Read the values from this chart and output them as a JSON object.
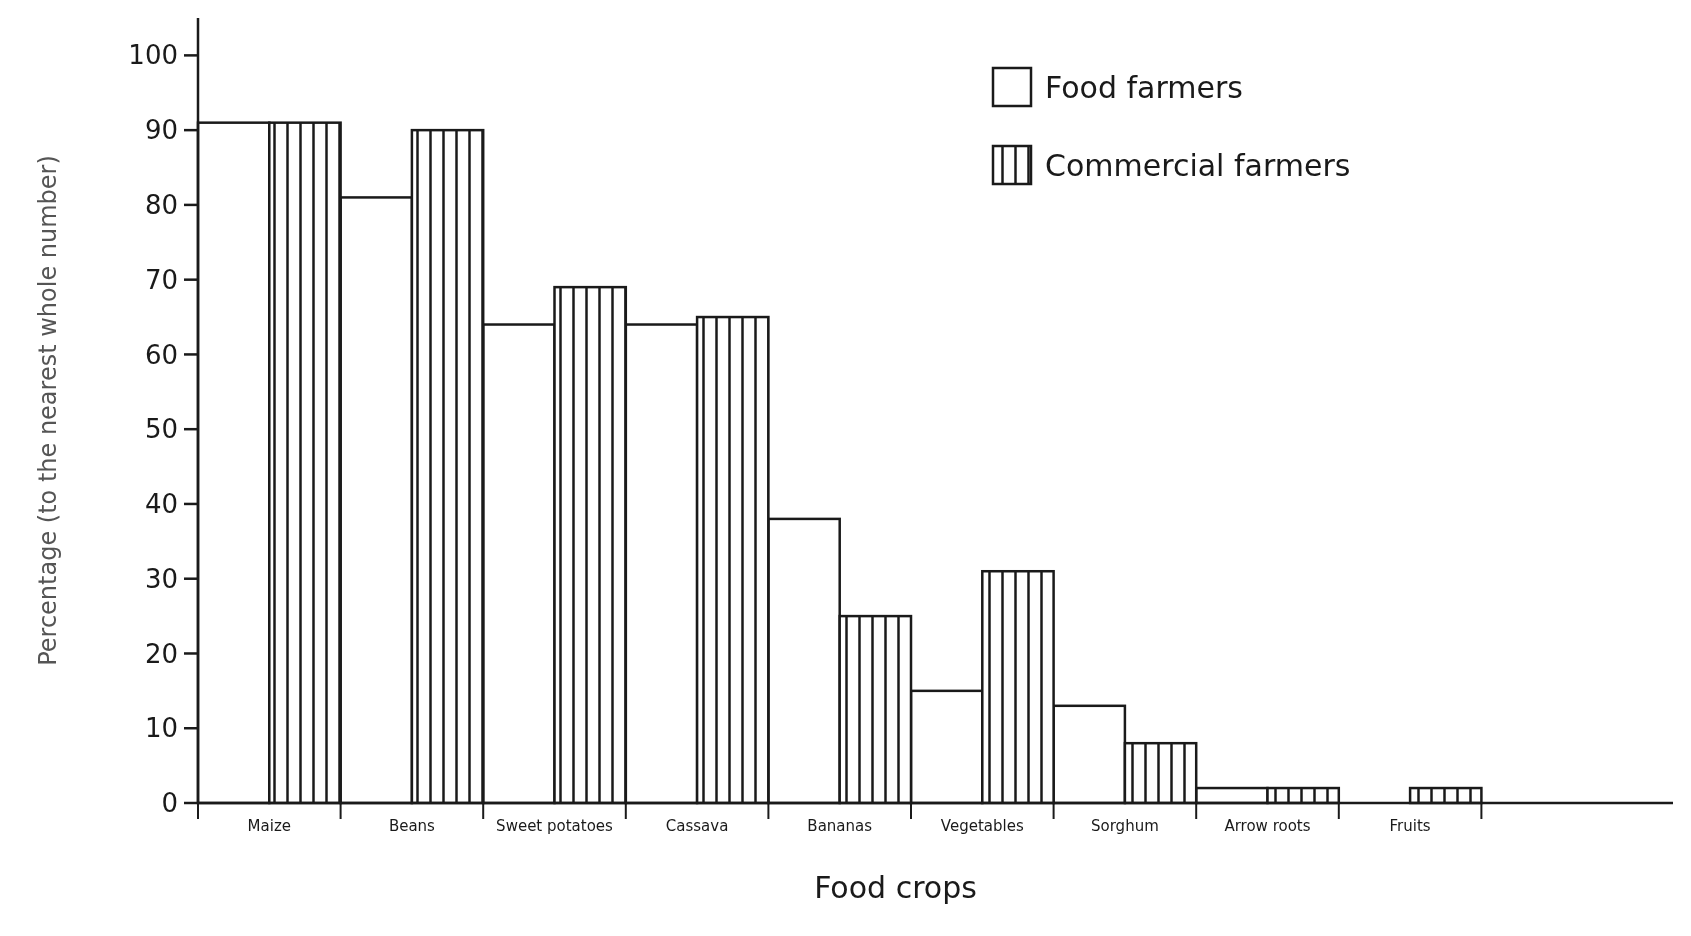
{
  "chart_data": {
    "type": "bar",
    "xlabel": "Food crops",
    "ylabel": "Percentage (to the nearest whole number)",
    "categories": [
      "Maize",
      "Beans",
      "Sweet potatoes",
      "Cassava",
      "Bananas",
      "Vegetables",
      "Sorghum",
      "Arrow roots",
      "Fruits"
    ],
    "series": [
      {
        "name": "Food farmers",
        "color": "#ffffff",
        "values": [
          91,
          81,
          64,
          64,
          38,
          15,
          13,
          2,
          0
        ]
      },
      {
        "name": "Commercial farmers",
        "color": "#1a1a1a",
        "values": [
          91,
          90,
          69,
          65,
          25,
          31,
          8,
          2,
          2
        ]
      }
    ],
    "ylim": [
      0,
      105
    ],
    "yticks": [
      0,
      10,
      20,
      30,
      40,
      50,
      60,
      70,
      80,
      90,
      100
    ],
    "grid": false,
    "legend": "top right"
  }
}
